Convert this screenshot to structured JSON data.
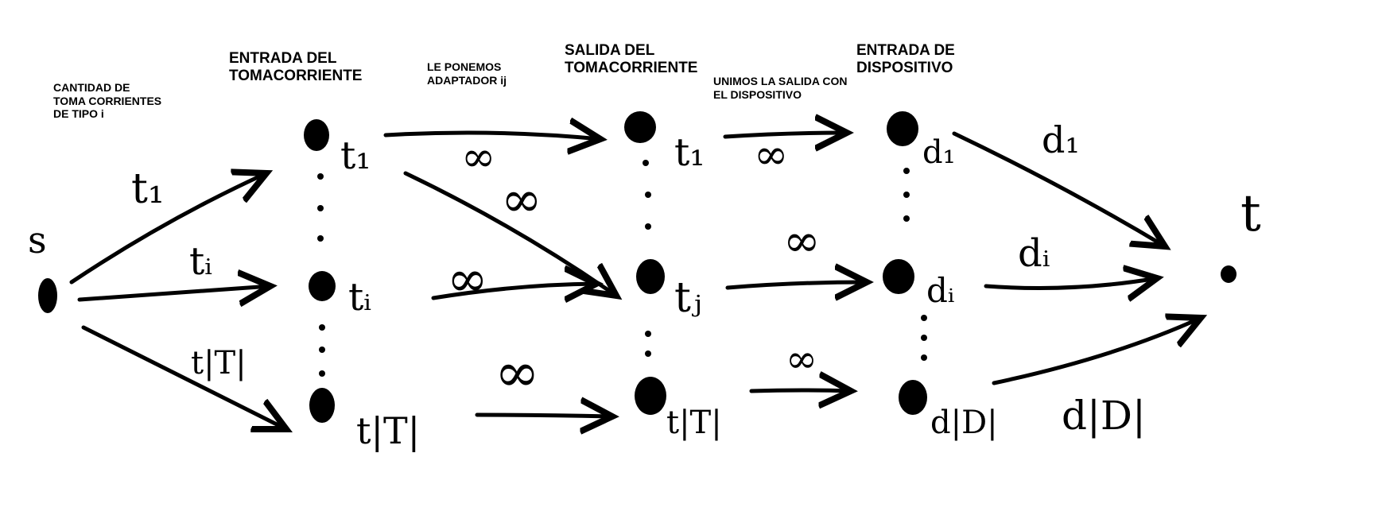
{
  "headers": {
    "source_capacity": [
      "CANTIDAD DE",
      "TOMA CORRIENTES",
      "DE TIPO i"
    ],
    "socket_input": [
      "ENTRADA DEL",
      "TOMACORRIENTE"
    ],
    "adapter": [
      "LE PONEMOS",
      "ADAPTADOR ij"
    ],
    "socket_output": [
      "SALIDA DEL",
      "TOMACORRIENTE"
    ],
    "join": [
      "UNIMOS LA SALIDA CON",
      "EL DISPOSITIVO"
    ],
    "device_input": [
      "ENTRADA DE",
      "DISPOSITIVO"
    ]
  },
  "nodes": {
    "source": "s",
    "sink": "t",
    "in_1": "t₁",
    "in_i": "tᵢ",
    "in_T": "t|T|",
    "out_1": "t₁",
    "out_j": "tⱼ",
    "out_T": "t|T|",
    "dev_1": "d₁",
    "dev_i": "dᵢ",
    "dev_D": "d|D|"
  },
  "edges": {
    "s_in_1": "t₁",
    "s_in_i": "tᵢ",
    "s_in_T": "t|T|",
    "adapter_11": "∞",
    "adapter_1j": "∞",
    "adapter_ij": "∞",
    "adapter_TT": "∞",
    "join_1": "∞",
    "join_j": "∞",
    "join_T": "∞",
    "dev_1_t": "d₁",
    "dev_i_t": "dᵢ",
    "dev_D_t": "d|D|"
  }
}
